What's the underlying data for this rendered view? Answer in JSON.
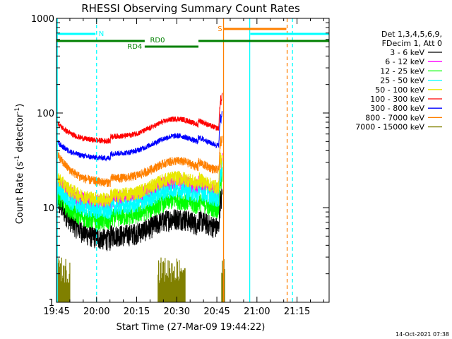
{
  "chart_data": {
    "type": "line",
    "title": "RHESSI Observing Summary Count Rates",
    "xlabel": "Start Time (27-Mar-09 19:44:22)",
    "ylabel_main": "Count Rate (s",
    "ylabel_sup1": "-1",
    "ylabel_mid": " detector",
    "ylabel_sup2": "-1",
    "ylabel_end": ")",
    "y_scale": "log",
    "ylim": [
      1,
      1000
    ],
    "xlim_minutes": [
      0,
      102
    ],
    "x_ticks": [
      {
        "minute": 0,
        "label": "19:45"
      },
      {
        "minute": 15,
        "label": "20:00"
      },
      {
        "minute": 30,
        "label": "20:15"
      },
      {
        "minute": 45,
        "label": "20:30"
      },
      {
        "minute": 60,
        "label": "20:45"
      },
      {
        "minute": 75,
        "label": "21:00"
      },
      {
        "minute": 90,
        "label": "21:15"
      }
    ],
    "y_ticks": [
      {
        "value": 1,
        "label": "1"
      },
      {
        "value": 10,
        "label": "10"
      },
      {
        "value": 100,
        "label": "100"
      },
      {
        "value": 1000,
        "label": "1000"
      }
    ],
    "legend": {
      "header1": "Det 1,3,4,5,6,9,",
      "header2": "FDecim 1, Att 0",
      "placement": "right-outside"
    },
    "series": [
      {
        "name": "3 - 6 keV",
        "color": "#000000",
        "base": 4.5,
        "amp": 7.5,
        "jitter": 0.12
      },
      {
        "name": "6 - 12 keV",
        "color": "#ff00ff",
        "base": 11.0,
        "amp": 8.5,
        "jitter": 0.09
      },
      {
        "name": "12 - 25 keV",
        "color": "#00ff00",
        "base": 7.0,
        "amp": 6.5,
        "jitter": 0.1
      },
      {
        "name": "25 - 50 keV",
        "color": "#00ffff",
        "base": 9.0,
        "amp": 7.0,
        "jitter": 0.09
      },
      {
        "name": "50 - 100 keV",
        "color": "#e8e800",
        "base": 12.0,
        "amp": 9.0,
        "jitter": 0.08
      },
      {
        "name": "100 - 300 keV",
        "color": "#ff0000",
        "base": 50.0,
        "amp": 28.0,
        "jitter": 0.03
      },
      {
        "name": "300 - 800 keV",
        "color": "#0000ff",
        "base": 33.0,
        "amp": 16.0,
        "jitter": 0.03
      },
      {
        "name": "800 - 7000 keV",
        "color": "#ff8000",
        "base": 18.0,
        "amp": 18.0,
        "jitter": 0.05
      },
      {
        "name": "7000 - 15000 keV",
        "color": "#808000",
        "base": 0,
        "amp": 0,
        "jitter": 0
      }
    ],
    "annotations": [
      {
        "text": "N",
        "color": "#00ffff"
      },
      {
        "text": "RD0",
        "color": "#008000"
      },
      {
        "text": "RD4",
        "color": "#008000"
      },
      {
        "text": "S",
        "color": "#ff8000"
      }
    ],
    "segment_breaks_minutes": [
      20.2,
      53.0,
      61.5
    ],
    "vertical_markers": [
      {
        "minute": 0.3,
        "color": "#00ffff",
        "style": "solid"
      },
      {
        "minute": 15.0,
        "color": "#00ffff",
        "style": "dashed"
      },
      {
        "minute": 62.5,
        "color": "#ff8000",
        "style": "solid"
      },
      {
        "minute": 72.3,
        "color": "#00ffff",
        "style": "solid"
      },
      {
        "minute": 86.3,
        "color": "#ff8000",
        "style": "dashed"
      },
      {
        "minute": 88.3,
        "color": "#00ffff",
        "style": "dashed"
      }
    ]
  },
  "footer": {
    "date_stamp": "14-Oct-2021 07:38"
  }
}
